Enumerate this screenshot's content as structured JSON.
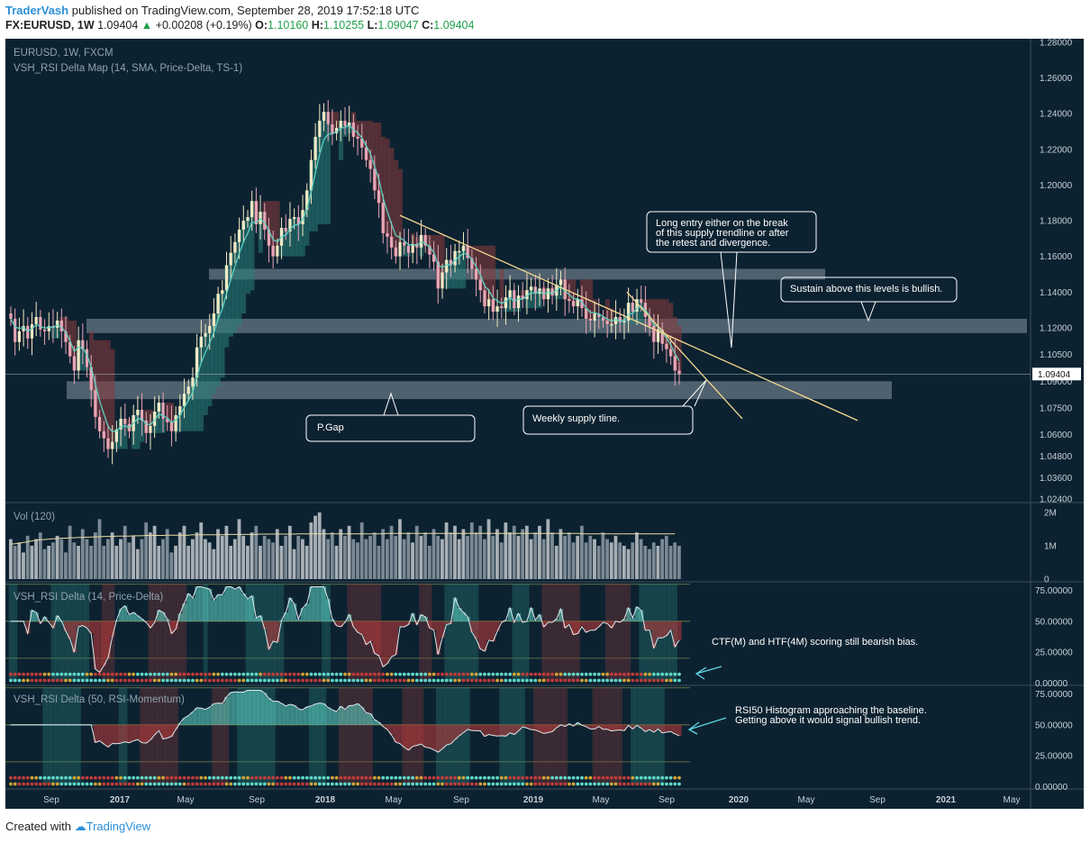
{
  "header": {
    "author": "TraderVash",
    "published": "published on TradingView.com, September 28, 2019 17:52:18 UTC",
    "symbol": "FX:EURUSD, 1W",
    "last": "1.09404",
    "change_arrow": "▲",
    "change": "+0.00208 (+0.19%)",
    "o_label": "O:",
    "o": "1.10160",
    "h_label": "H:",
    "h": "1.10255",
    "l_label": "L:",
    "l": "1.09047",
    "c_label": "C:",
    "c": "1.09404"
  },
  "footer": {
    "created": "Created with",
    "brand": "TradingView"
  },
  "colors": {
    "background": "#0c2231",
    "bull_candle": "#f3e9c4",
    "bear_candle": "#e7a6b6",
    "teal": "#5fd6c6",
    "red": "#c03a3a",
    "trendline": "#f5d98f",
    "zone": "#8795a0",
    "histogram_teal": "#2a7f7a",
    "histogram_red": "#8b3a3d"
  },
  "chart_data": [
    {
      "type": "candlestick",
      "title": "EURUSD, 1W, FXCM",
      "indicator": "VSH_RSI Delta Map (14, SMA, Price-Delta, TS-1)",
      "x_ticks": [
        "Sep",
        "2017",
        "May",
        "Sep",
        "2018",
        "May",
        "Sep",
        "2019",
        "May",
        "Sep",
        "2020",
        "May",
        "Sep",
        "2021",
        "May"
      ],
      "y_ticks": [
        "1.28000",
        "1.26000",
        "1.24000",
        "1.22000",
        "1.20000",
        "1.18000",
        "1.16000",
        "1.14000",
        "1.12000",
        "1.10500",
        "1.09000",
        "1.07500",
        "1.06000",
        "1.04800",
        "1.03600",
        "1.02400"
      ],
      "y_tick_values": [
        1.28,
        1.26,
        1.24,
        1.22,
        1.2,
        1.18,
        1.16,
        1.14,
        1.12,
        1.105,
        1.09,
        1.075,
        1.06,
        1.048,
        1.036,
        1.024
      ],
      "ylim": [
        1.022,
        1.282
      ],
      "last_price_label": "1.09404",
      "last_price": 1.09404,
      "close_path": [
        1.125,
        1.112,
        1.118,
        1.121,
        1.114,
        1.122,
        1.126,
        1.119,
        1.118,
        1.121,
        1.12,
        1.124,
        1.118,
        1.112,
        1.104,
        1.096,
        1.113,
        1.108,
        1.098,
        1.085,
        1.07,
        1.062,
        1.058,
        1.052,
        1.056,
        1.063,
        1.069,
        1.066,
        1.062,
        1.071,
        1.074,
        1.068,
        1.061,
        1.065,
        1.073,
        1.078,
        1.069,
        1.067,
        1.062,
        1.071,
        1.076,
        1.083,
        1.087,
        1.092,
        1.109,
        1.115,
        1.117,
        1.121,
        1.128,
        1.139,
        1.141,
        1.155,
        1.162,
        1.168,
        1.175,
        1.18,
        1.182,
        1.191,
        1.178,
        1.185,
        1.175,
        1.166,
        1.16,
        1.166,
        1.176,
        1.174,
        1.181,
        1.182,
        1.178,
        1.186,
        1.197,
        1.214,
        1.227,
        1.236,
        1.241,
        1.234,
        1.229,
        1.232,
        1.236,
        1.233,
        1.235,
        1.227,
        1.226,
        1.221,
        1.214,
        1.209,
        1.197,
        1.19,
        1.173,
        1.171,
        1.165,
        1.16,
        1.168,
        1.166,
        1.162,
        1.167,
        1.165,
        1.172,
        1.166,
        1.161,
        1.157,
        1.142,
        1.151,
        1.158,
        1.155,
        1.163,
        1.163,
        1.166,
        1.159,
        1.153,
        1.147,
        1.141,
        1.132,
        1.136,
        1.129,
        1.132,
        1.131,
        1.137,
        1.141,
        1.131,
        1.138,
        1.136,
        1.141,
        1.143,
        1.139,
        1.142,
        1.136,
        1.142,
        1.138,
        1.144,
        1.147,
        1.136,
        1.135,
        1.132,
        1.136,
        1.131,
        1.125,
        1.124,
        1.128,
        1.126,
        1.124,
        1.122,
        1.122,
        1.126,
        1.123,
        1.124,
        1.134,
        1.129,
        1.136,
        1.134,
        1.126,
        1.121,
        1.112,
        1.119,
        1.111,
        1.108,
        1.104,
        1.096,
        1.094
      ],
      "candle_colors": [
        "bull_candle",
        "bear_candle"
      ],
      "band_start_index": 10,
      "band_series": "teal/red trailing band",
      "zones": [
        {
          "from": 1.147,
          "to": 1.153
        },
        {
          "from": 1.117,
          "to": 1.125
        },
        {
          "from": 1.08,
          "to": 1.09
        }
      ],
      "trendlines": [
        {
          "from": {
            "x": "2018-06",
            "y": 1.183
          },
          "to": {
            "x": "2020-03",
            "y": 1.068
          }
        },
        {
          "from": {
            "x": "2019-06",
            "y": 1.14
          },
          "to": {
            "x": "2019-12",
            "y": 1.075
          }
        }
      ],
      "annotations": [
        {
          "text": "Long entry either on the break\nof this supply trendline or after\nthe retest and divergence."
        },
        {
          "text": "Sustain above this levels is bullish."
        },
        {
          "text": "Weekly supply tline."
        },
        {
          "text": "P.Gap"
        }
      ]
    },
    {
      "type": "bar",
      "title": "Vol (120)",
      "y_ticks": [
        "2M",
        "1M",
        "0"
      ],
      "ylim": [
        0,
        2000000
      ],
      "values_millions": [
        1.2,
        1.0,
        1.1,
        0.8,
        1.3,
        1.0,
        1.2,
        1.4,
        0.9,
        1.0,
        1.1,
        1.3,
        1.2,
        0.8,
        1.6,
        1.1,
        1.0,
        1.5,
        1.2,
        1.0,
        1.4,
        1.8,
        1.0,
        1.2,
        1.4,
        1.0,
        1.2,
        1.6,
        1.1,
        1.3,
        0.9,
        1.2,
        1.7,
        1.4,
        1.6,
        1.0,
        1.2,
        1.5,
        0.8,
        1.0,
        1.4,
        1.6,
        1.0,
        1.2,
        1.4,
        1.7,
        1.2,
        1.1,
        0.9,
        1.5,
        1.3,
        1.6,
        1.0,
        1.2,
        1.8,
        1.3,
        1.0,
        1.4,
        1.6,
        1.0,
        1.3,
        1.2,
        1.1,
        1.5,
        1.0,
        1.3,
        1.6,
        0.9,
        1.3,
        1.2,
        1.0,
        1.7,
        1.9,
        2.0,
        1.5,
        1.2,
        1.4,
        1.0,
        1.5,
        1.3,
        1.6,
        1.2,
        1.1,
        1.7,
        1.2,
        1.3,
        1.4,
        1.0,
        1.5,
        1.2,
        1.6,
        1.3,
        1.8,
        1.2,
        1.4,
        1.1,
        1.6,
        1.3,
        1.4,
        1.0,
        1.5,
        1.3,
        1.2,
        1.7,
        1.4,
        1.6,
        1.2,
        1.5,
        1.3,
        1.7,
        1.4,
        1.6,
        1.2,
        1.8,
        1.3,
        1.5,
        1.1,
        1.7,
        1.4,
        1.6,
        1.3,
        1.5,
        1.6,
        1.2,
        1.4,
        1.6,
        1.2,
        1.8,
        1.4,
        1.0,
        1.5,
        1.3,
        1.4,
        1.1,
        1.3,
        1.6,
        1.1,
        1.3,
        1.2,
        1.0,
        1.4,
        1.2,
        1.1,
        1.3,
        1.1,
        1.0,
        0.9,
        1.1,
        1.4,
        1.2,
        1.0,
        0.9,
        1.1,
        1.0,
        1.2,
        1.3,
        1.0,
        1.1,
        1.0
      ],
      "ma_millions": [
        1.05,
        1.06,
        1.08,
        1.1,
        1.12,
        1.15,
        1.17,
        1.18,
        1.19,
        1.2,
        1.21,
        1.22,
        1.23,
        1.23,
        1.24,
        1.24,
        1.25,
        1.25,
        1.26,
        1.26,
        1.27,
        1.27,
        1.28,
        1.28,
        1.28,
        1.29,
        1.29,
        1.29,
        1.29,
        1.3,
        1.3,
        1.3,
        1.31,
        1.31,
        1.31,
        1.31,
        1.31,
        1.32,
        1.32,
        1.32,
        1.32,
        1.32,
        1.32,
        1.33,
        1.33,
        1.33,
        1.33,
        1.33,
        1.33,
        1.33,
        1.33,
        1.34,
        1.34,
        1.34,
        1.34,
        1.34,
        1.34,
        1.34,
        1.34,
        1.35,
        1.35,
        1.35,
        1.35,
        1.35,
        1.35,
        1.35,
        1.35,
        1.35,
        1.36,
        1.36,
        1.36,
        1.36,
        1.36,
        1.36,
        1.36,
        1.36,
        1.36,
        1.36,
        1.36,
        1.36,
        1.36,
        1.36,
        1.36,
        1.36,
        1.36,
        1.36,
        1.36,
        1.36,
        1.36,
        1.37,
        1.37,
        1.37,
        1.37,
        1.37,
        1.37,
        1.37,
        1.37,
        1.37,
        1.37,
        1.37,
        1.37,
        1.37,
        1.37,
        1.37,
        1.37,
        1.37,
        1.37,
        1.37,
        1.37,
        1.37,
        1.37,
        1.37,
        1.37,
        1.37,
        1.37,
        1.37,
        1.37,
        1.37,
        1.37,
        1.37,
        1.37,
        1.37,
        1.37,
        1.37,
        1.37,
        1.37,
        1.37,
        1.37,
        1.37,
        1.37,
        1.37,
        1.37,
        1.37,
        1.37,
        1.37,
        1.36,
        1.36,
        1.36,
        1.36,
        1.36,
        1.36,
        1.36,
        1.36,
        1.36,
        1.36,
        1.36,
        1.36,
        1.36,
        1.36,
        1.36,
        1.36,
        1.36,
        1.36,
        1.36,
        1.36,
        1.36,
        1.36,
        1.36
      ]
    },
    {
      "type": "area",
      "title": "VSH_RSI Delta (14, Price-Delta)",
      "y_ticks": [
        "75.00000",
        "50.00000",
        "25.00000",
        "0.00000"
      ],
      "ylim": [
        -2,
        82
      ],
      "baseline": 50,
      "levels": [
        80,
        50,
        20
      ],
      "annotation": "CTF(M) and HTF(4M) scoring still bearish bias."
    },
    {
      "type": "area",
      "title": "VSH_RSI Delta (50, RSI-Momentum)",
      "y_ticks": [
        "75.00000",
        "50.00000",
        "25.00000",
        "0.00000"
      ],
      "ylim": [
        -2,
        82
      ],
      "baseline": 50,
      "levels": [
        80,
        50,
        20
      ],
      "annotation": "RSI50 Histogram approaching the baseline.\nGetting above it would signal bullish trend."
    }
  ]
}
